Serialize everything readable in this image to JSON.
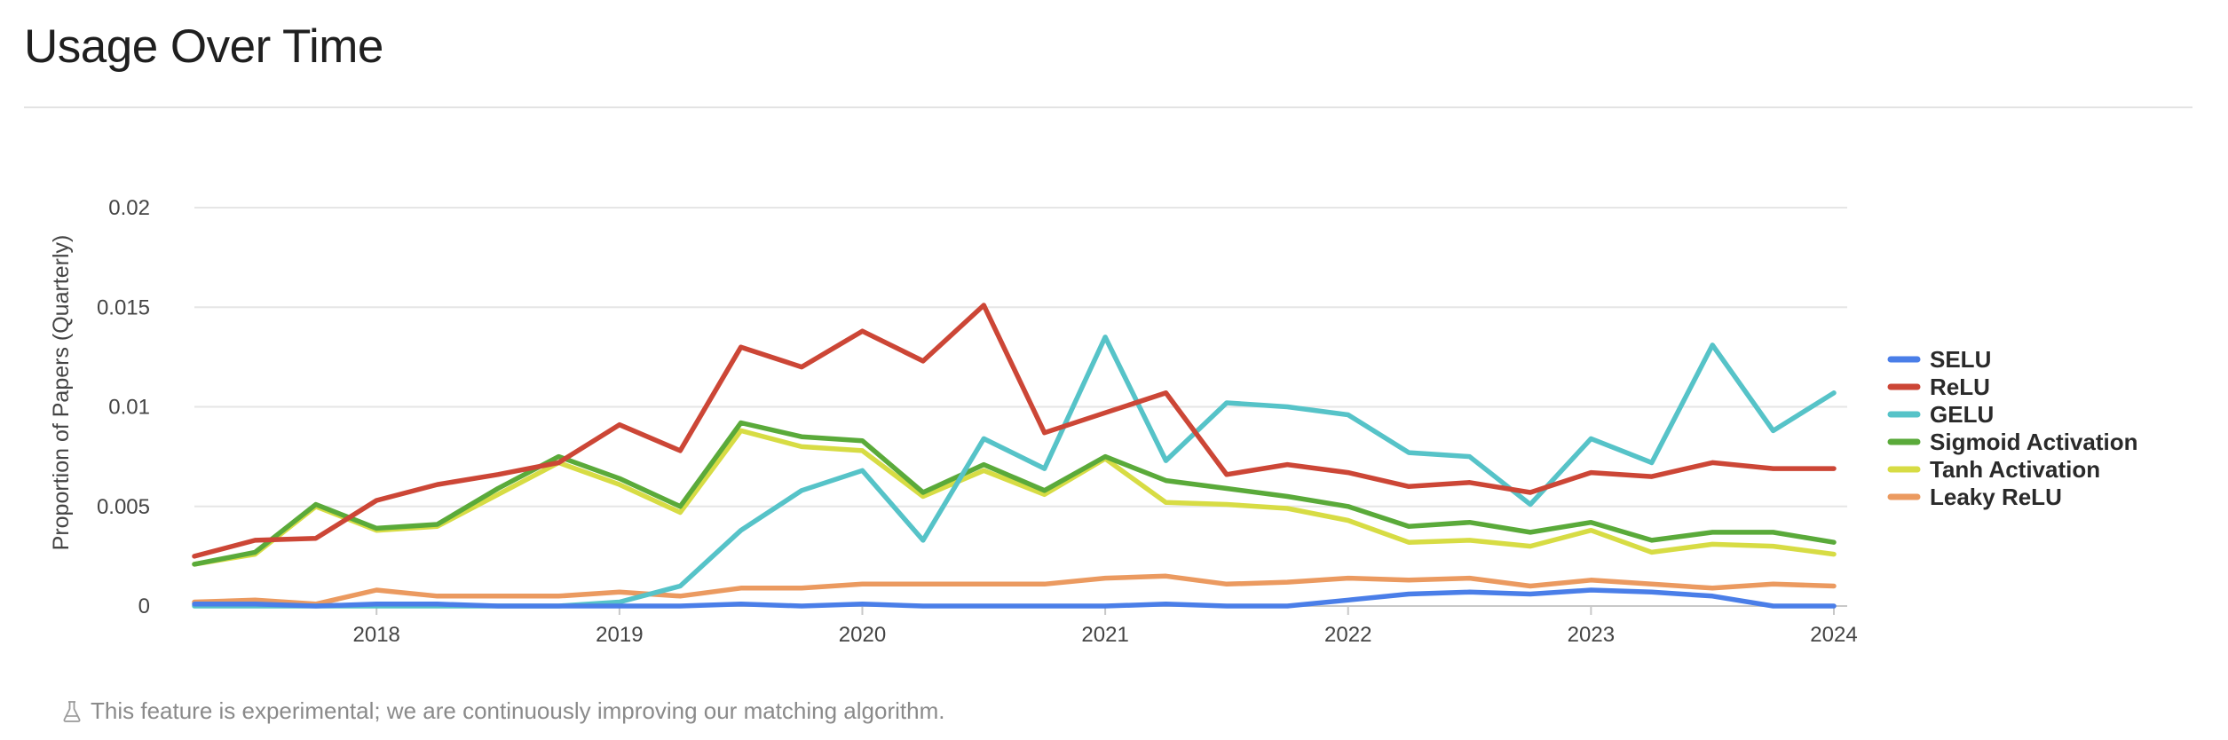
{
  "page": {
    "title": "Usage Over Time",
    "footnote": "This feature is experimental; we are continuously improving our matching algorithm.",
    "footnote_icon": "flask-icon"
  },
  "chart_data": {
    "type": "line",
    "title": "",
    "xlabel": "",
    "ylabel": "Proportion of Papers (Quarterly)",
    "xlim": [
      2017.25,
      2024.0
    ],
    "ylim": [
      0,
      0.02
    ],
    "x_ticks": [
      2018,
      2019,
      2020,
      2021,
      2022,
      2023,
      2024
    ],
    "x_tick_labels": [
      "2018",
      "2019",
      "2020",
      "2021",
      "2022",
      "2023",
      "2024"
    ],
    "y_ticks": [
      0,
      0.005,
      0.01,
      0.015,
      0.02
    ],
    "y_tick_labels": [
      "0",
      "0.005",
      "0.01",
      "0.015",
      "0.02"
    ],
    "grid": "horizontal",
    "legend_position": "right",
    "x": [
      2017.25,
      2017.5,
      2017.75,
      2018.0,
      2018.25,
      2018.5,
      2018.75,
      2019.0,
      2019.25,
      2019.5,
      2019.75,
      2020.0,
      2020.25,
      2020.5,
      2020.75,
      2021.0,
      2021.25,
      2021.5,
      2021.75,
      2022.0,
      2022.25,
      2022.5,
      2022.75,
      2023.0,
      2023.25,
      2023.5,
      2023.75,
      2024.0
    ],
    "series": [
      {
        "name": "SELU",
        "color": "#4a7ee8",
        "values": [
          0.0001,
          0.0001,
          0.0,
          0.0001,
          0.0001,
          0.0,
          0.0,
          0.0,
          0.0,
          0.0001,
          0.0,
          0.0001,
          0.0,
          0.0,
          0.0,
          0.0,
          0.0001,
          0.0,
          0.0,
          0.0003,
          0.0006,
          0.0007,
          0.0006,
          0.0008,
          0.0007,
          0.0005,
          0.0,
          0.0
        ]
      },
      {
        "name": "ReLU",
        "color": "#cc4636",
        "values": [
          0.0025,
          0.0033,
          0.0034,
          0.0053,
          0.0061,
          0.0066,
          0.0072,
          0.0091,
          0.0078,
          0.013,
          0.012,
          0.0138,
          0.0123,
          0.0151,
          0.0087,
          0.0097,
          0.0107,
          0.0066,
          0.0071,
          0.0067,
          0.006,
          0.0062,
          0.0057,
          0.0067,
          0.0065,
          0.0072,
          0.0069,
          0.0069
        ]
      },
      {
        "name": "GELU",
        "color": "#56c3c8",
        "values": [
          0.0,
          0.0,
          0.0,
          0.0,
          0.0,
          0.0,
          0.0,
          0.0002,
          0.001,
          0.0038,
          0.0058,
          0.0068,
          0.0033,
          0.0084,
          0.0069,
          0.0135,
          0.0073,
          0.0102,
          0.01,
          0.0096,
          0.0077,
          0.0075,
          0.0051,
          0.0084,
          0.0072,
          0.0131,
          0.0088,
          0.0107
        ]
      },
      {
        "name": "Sigmoid Activation",
        "color": "#5aaa3a",
        "values": [
          0.0021,
          0.0027,
          0.0051,
          0.0039,
          0.0041,
          0.0059,
          0.0075,
          0.0064,
          0.005,
          0.0092,
          0.0085,
          0.0083,
          0.0057,
          0.0071,
          0.0058,
          0.0075,
          0.0063,
          0.0059,
          0.0055,
          0.005,
          0.004,
          0.0042,
          0.0037,
          0.0042,
          0.0033,
          0.0037,
          0.0037,
          0.0032
        ]
      },
      {
        "name": "Tanh Activation",
        "color": "#d7dc44",
        "values": [
          0.0021,
          0.0026,
          0.005,
          0.0038,
          0.004,
          0.0056,
          0.0072,
          0.0061,
          0.0047,
          0.0088,
          0.008,
          0.0078,
          0.0055,
          0.0068,
          0.0056,
          0.0074,
          0.0052,
          0.0051,
          0.0049,
          0.0043,
          0.0032,
          0.0033,
          0.003,
          0.0038,
          0.0027,
          0.0031,
          0.003,
          0.0026
        ]
      },
      {
        "name": "Leaky ReLU",
        "color": "#eb9a60",
        "values": [
          0.0002,
          0.0003,
          0.0001,
          0.0008,
          0.0005,
          0.0005,
          0.0005,
          0.0007,
          0.0005,
          0.0009,
          0.0009,
          0.0011,
          0.0011,
          0.0011,
          0.0011,
          0.0014,
          0.0015,
          0.0011,
          0.0012,
          0.0014,
          0.0013,
          0.0014,
          0.001,
          0.0013,
          0.0011,
          0.0009,
          0.0011,
          0.001
        ]
      }
    ]
  }
}
